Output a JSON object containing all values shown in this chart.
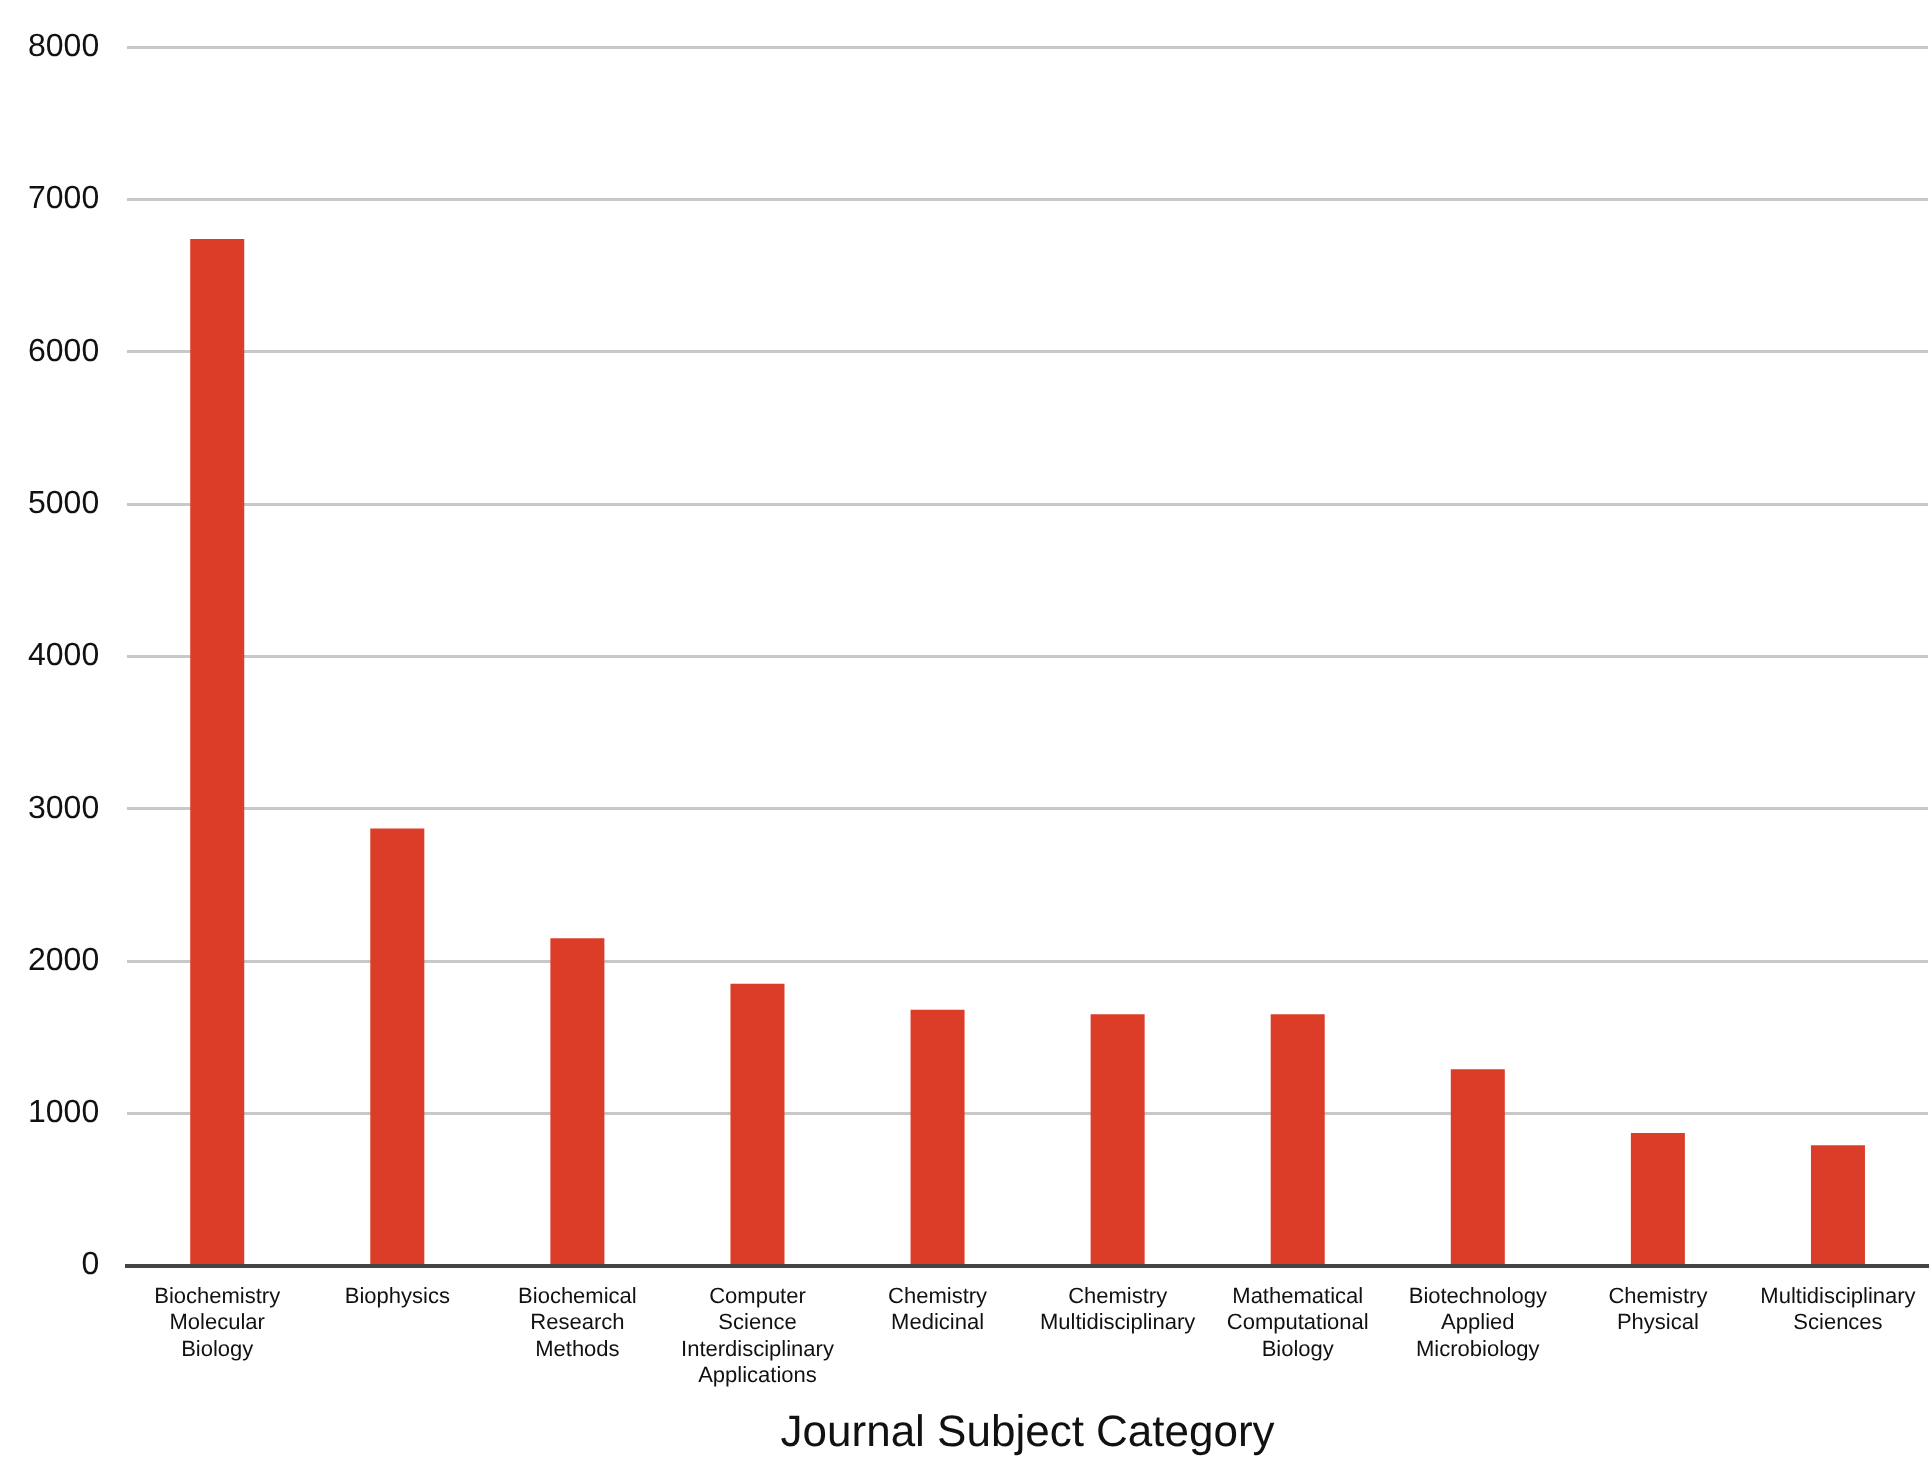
{
  "chart_data": {
    "type": "bar",
    "xlabel": "Journal Subject Category",
    "categories": [
      "Biochemistry Molecular Biology",
      "Biophysics",
      "Biochemical Research Methods",
      "Computer Science Interdisciplinary Applications",
      "Chemistry Medicinal",
      "Chemistry Multidisciplinary",
      "Mathematical Computational Biology",
      "Biotechnology Applied Microbiology",
      "Chemistry Physical",
      "Multidisciplinary Sciences"
    ],
    "values": [
      6740,
      2870,
      2150,
      1850,
      1680,
      1650,
      1650,
      1290,
      870,
      790
    ],
    "color": "#dc3d28",
    "ylim": [
      0,
      8000
    ],
    "yticks": [
      0,
      1000,
      2000,
      3000,
      4000,
      5000,
      6000,
      7000,
      8000
    ],
    "grid": "y"
  }
}
